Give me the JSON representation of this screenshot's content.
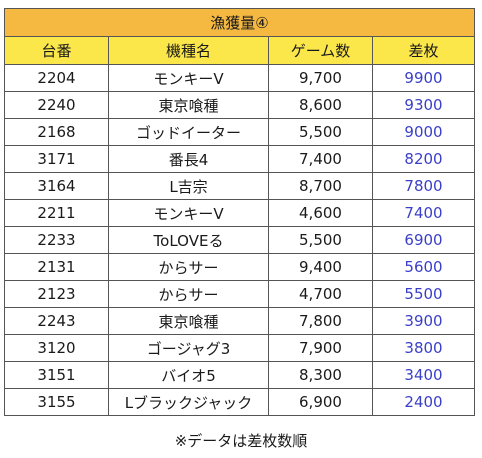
{
  "title": "漁獲量④",
  "columns": {
    "dai": "台番",
    "kishu": "機種名",
    "game": "ゲーム数",
    "diff": "差枚"
  },
  "rows": [
    {
      "dai": "2204",
      "kishu": "モンキーV",
      "game": "9,700",
      "diff": "9900"
    },
    {
      "dai": "2240",
      "kishu": "東京喰種",
      "game": "8,600",
      "diff": "9300"
    },
    {
      "dai": "2168",
      "kishu": "ゴッドイーター",
      "game": "5,500",
      "diff": "9000"
    },
    {
      "dai": "3171",
      "kishu": "番長4",
      "game": "7,400",
      "diff": "8200"
    },
    {
      "dai": "3164",
      "kishu": "L吉宗",
      "game": "8,700",
      "diff": "7800"
    },
    {
      "dai": "2211",
      "kishu": "モンキーV",
      "game": "4,600",
      "diff": "7400"
    },
    {
      "dai": "2233",
      "kishu": "ToLOVEる",
      "game": "5,500",
      "diff": "6900"
    },
    {
      "dai": "2131",
      "kishu": "からサー",
      "game": "9,400",
      "diff": "5600"
    },
    {
      "dai": "2123",
      "kishu": "からサー",
      "game": "4,700",
      "diff": "5500"
    },
    {
      "dai": "2243",
      "kishu": "東京喰種",
      "game": "7,800",
      "diff": "3900"
    },
    {
      "dai": "3120",
      "kishu": "ゴージャグ3",
      "game": "7,900",
      "diff": "3800"
    },
    {
      "dai": "3151",
      "kishu": "バイオ5",
      "game": "8,300",
      "diff": "3400"
    },
    {
      "dai": "3155",
      "kishu": "Lブラックジャック",
      "game": "6,900",
      "diff": "2400"
    }
  ],
  "footnote": "※データは差枚数順",
  "colors": {
    "title_bg": "#f5b942",
    "header_bg": "#fbe74a",
    "diff_text": "#3a3fc8",
    "border": "#555555"
  }
}
